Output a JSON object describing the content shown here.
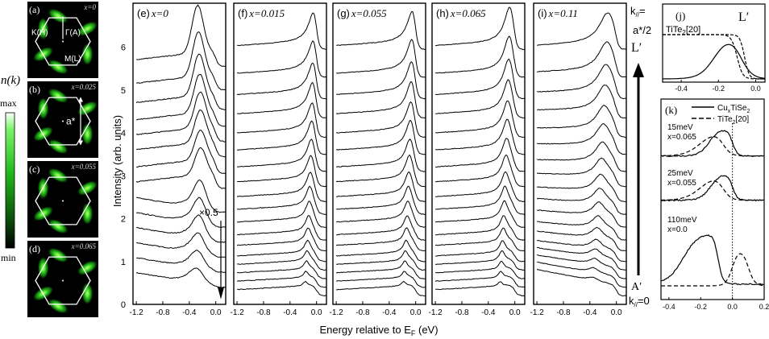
{
  "colorbar": {
    "symbol": "n(k)",
    "max": "max",
    "min": "min"
  },
  "maps": [
    {
      "tag": "(a)",
      "x": "x=0",
      "labels": {
        "gamma": "Γ(A)",
        "k": "K(H)",
        "m": "M(L)"
      }
    },
    {
      "tag": "(b)",
      "x": "x=0.025",
      "labels": {
        "astar": "a*"
      }
    },
    {
      "tag": "(c)",
      "x": "x=0.055",
      "labels": {}
    },
    {
      "tag": "(d)",
      "x": "x=0.065",
      "labels": {}
    }
  ],
  "main": {
    "ylabel": "Intensity (arb. units)",
    "xlabel": "Energy relative to E",
    "xlabel_sub": "F",
    "xlabel_unit": " (eV)",
    "yticks": [
      "0",
      "1",
      "2",
      "3",
      "4",
      "5",
      "6"
    ],
    "xticks_wide": [
      "-1.2",
      "-0.8",
      "-0.4",
      "0.0"
    ],
    "xticks_narrow": [
      "-1.2",
      "-0.8",
      "-0.4",
      "0.0"
    ],
    "annotation": "×0.5"
  },
  "panels": [
    {
      "tag": "(e)",
      "x": "x=0"
    },
    {
      "tag": "(f)",
      "x": "x=0.015"
    },
    {
      "tag": "(g)",
      "x": "x=0.055"
    },
    {
      "tag": "(h)",
      "x": "x=0.065"
    },
    {
      "tag": "(i)",
      "x": "x=0.11"
    }
  ],
  "kaxis": {
    "top1": "k",
    "top1_sub": "//",
    "top1_tail": "=",
    "top2": "a*/2",
    "top3": "L′",
    "bottom1": "A′",
    "bottom2": "k",
    "bottom2_sub": "//",
    "bottom2_tail": "=0"
  },
  "inset_j": {
    "tag": "(j)",
    "corner": "L′",
    "legend": "TiTe",
    "legend_sub": "2",
    "legend_tail": "[20]",
    "xticks": [
      "-0.4",
      "-0.2",
      "0.0"
    ]
  },
  "inset_k": {
    "tag": "(k)",
    "legend1": "Cu",
    "legend1_sub": "x",
    "legend1_tail": "TiSe",
    "legend1_sub2": "2",
    "legend2": "TiTe",
    "legend2_sub": "2",
    "legend2_tail": "[20]",
    "notes": [
      [
        "15meV",
        "x=0.065"
      ],
      [
        "25meV",
        "x=0.055"
      ],
      [
        "110meV",
        "x=0.0"
      ]
    ],
    "xticks": [
      "-0.4",
      "-0.2",
      "0.0",
      "0.2"
    ]
  },
  "chart_data": {
    "type": "line",
    "xlabel": "Energy relative to E_F (eV)",
    "ylabel": "Intensity (arb. units)",
    "xlim_panels": [
      -1.25,
      0.15
    ],
    "ylim": [
      0,
      6.8
    ],
    "panels": [
      {
        "name": "x=0",
        "n_curves": 14,
        "offsets": [
          0.4,
          0.75,
          1.1,
          1.45,
          1.8,
          2.15,
          2.7,
          3.05,
          3.45,
          3.8,
          4.15,
          4.55,
          5.0,
          5.55
        ],
        "peak_energy": -0.28,
        "scaled_curves": "×0.5"
      },
      {
        "name": "x=0.015",
        "n_curves": 18,
        "offsets": [
          0.2,
          0.4,
          0.6,
          0.8,
          1.0,
          1.25,
          1.5,
          1.8,
          2.1,
          2.4,
          2.75,
          3.1,
          3.5,
          3.9,
          4.35,
          4.8,
          5.3,
          5.95
        ],
        "peak_energy": -0.02
      },
      {
        "name": "x=0.055",
        "n_curves": 18,
        "offsets": [
          0.2,
          0.4,
          0.6,
          0.8,
          1.0,
          1.25,
          1.5,
          1.8,
          2.1,
          2.4,
          2.75,
          3.1,
          3.5,
          3.9,
          4.35,
          4.8,
          5.3,
          5.95
        ],
        "peak_energy": -0.03
      },
      {
        "name": "x=0.065",
        "n_curves": 18,
        "offsets": [
          0.2,
          0.4,
          0.6,
          0.8,
          1.0,
          1.25,
          1.5,
          1.8,
          2.1,
          2.4,
          2.75,
          3.1,
          3.5,
          3.9,
          4.35,
          4.8,
          5.3,
          5.95
        ],
        "peak_energy": -0.07
      },
      {
        "name": "x=0.11",
        "n_curves": 18,
        "offsets": [
          0.2,
          0.4,
          0.6,
          0.8,
          1.0,
          1.25,
          1.5,
          1.8,
          2.1,
          2.4,
          2.75,
          3.1,
          3.5,
          3.9,
          4.35,
          4.8,
          5.3,
          5.95
        ],
        "peak_energy": -0.13
      }
    ],
    "inset_j": {
      "xlim": [
        -0.5,
        0.05
      ],
      "series": [
        {
          "name": "TiTe2[20]",
          "style": "solid"
        },
        {
          "style": "dashed"
        },
        {
          "style": "dashed"
        }
      ]
    },
    "inset_k": {
      "xlim": [
        -0.45,
        0.2
      ],
      "series": [
        {
          "name": "CuxTiSe2",
          "style": "solid"
        },
        {
          "name": "TiTe2[20]",
          "style": "dashed"
        }
      ],
      "gaps_meV": [
        15,
        25,
        110
      ]
    }
  }
}
